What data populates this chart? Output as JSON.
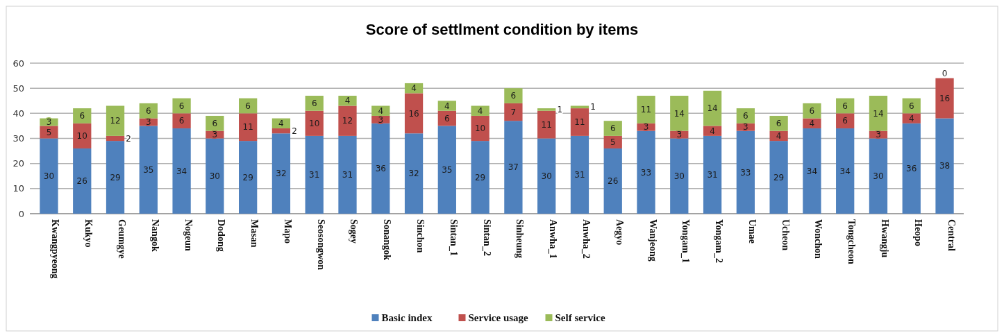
{
  "chart_data": {
    "type": "bar",
    "title": "Score of settlment condition by items",
    "stacked": true,
    "data_labels": true,
    "grid": "y",
    "legend": "bottom",
    "categories": [
      "Kwangpyeong",
      "Kukyo",
      "Geumgye",
      "Nangok",
      "Nogeun",
      "Dodong",
      "Masan",
      "Mapo",
      "Seosongwon",
      "Sogey",
      "Sonangok",
      "Sinchon",
      "Sintan_1",
      "Sintan_2",
      "Sinheung",
      "Anwha_1",
      "Anwha_2",
      "Aegyo",
      "Wanjeong",
      "Yongam_1",
      "Yongam_2",
      "Umae",
      "Ucheon",
      "Wonchon",
      "Tongcheon",
      "Hwangju",
      "Heopo",
      "Central"
    ],
    "ylim": [
      0,
      60
    ],
    "yticks": [
      0,
      10,
      20,
      30,
      40,
      50,
      60
    ],
    "series": [
      {
        "name": "Basic index",
        "color": "#4f81bd",
        "values": [
          30,
          26,
          29,
          35,
          34,
          30,
          29,
          32,
          31,
          31,
          36,
          32,
          35,
          29,
          37,
          30,
          31,
          26,
          33,
          30,
          31,
          33,
          29,
          34,
          34,
          30,
          36,
          38
        ]
      },
      {
        "name": "Service usage",
        "color": "#c0504d",
        "values": [
          5,
          10,
          2,
          3,
          6,
          3,
          11,
          2,
          10,
          12,
          3,
          16,
          6,
          10,
          7,
          11,
          11,
          5,
          3,
          3,
          4,
          3,
          4,
          4,
          6,
          3,
          4,
          16
        ]
      },
      {
        "name": "Self service",
        "color": "#9bbb59",
        "values": [
          3,
          6,
          12,
          6,
          6,
          6,
          6,
          4,
          6,
          4,
          4,
          4,
          4,
          4,
          6,
          1,
          1,
          6,
          11,
          14,
          14,
          6,
          6,
          6,
          6,
          14,
          6,
          0
        ]
      }
    ]
  }
}
